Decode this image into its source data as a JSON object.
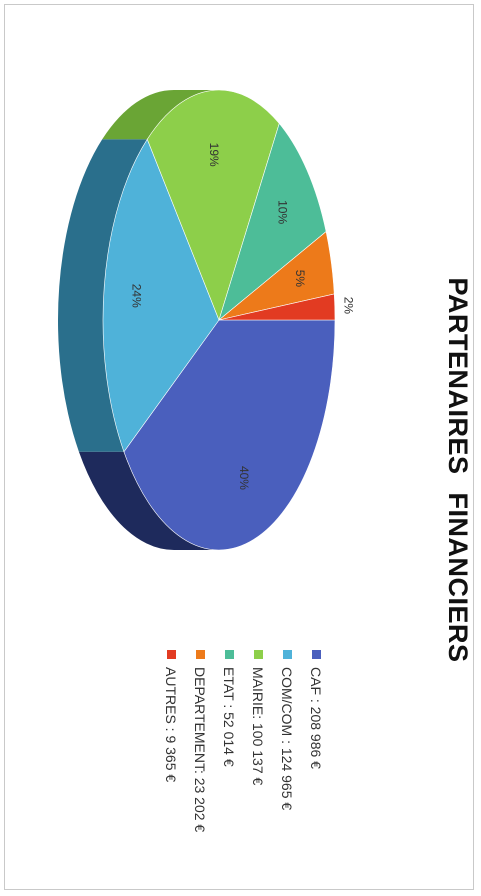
{
  "chart_data": {
    "type": "pie",
    "title": "PARTENAIRES  FINANCIERS",
    "series": [
      {
        "name": "CAF",
        "legend": "CAF : 208 986 €",
        "value": 208986,
        "percent_label": "40%",
        "color": "#4a5fbd",
        "side_color": "#1e2a5c"
      },
      {
        "name": "COM/COM",
        "legend": "COM/COM : 124 965 €",
        "value": 124965,
        "percent_label": "24%",
        "color": "#4fb2d9",
        "side_color": "#2a6f8c"
      },
      {
        "name": "MAIRIE",
        "legend": "MAIRIE: 100 137 €",
        "value": 100137,
        "percent_label": "19%",
        "color": "#8dcf4a",
        "side_color": "#6aa535"
      },
      {
        "name": "ETAT",
        "legend": "ETAT : 52 014 €",
        "value": 52014,
        "percent_label": "10%",
        "color": "#4dbd98",
        "side_color": "#2f7d63"
      },
      {
        "name": "DEPARTEMENT",
        "legend": "DEPARTEMENT: 23 202 €",
        "value": 23202,
        "percent_label": "5%",
        "color": "#ed7a1a",
        "side_color": "#a8540f"
      },
      {
        "name": "AUTRES",
        "legend": "AUTRES : 9 365 €",
        "value": 9365,
        "percent_label": "2%",
        "color": "#e23b22",
        "side_color": "#9c2816"
      }
    ],
    "legend_position": "right"
  }
}
